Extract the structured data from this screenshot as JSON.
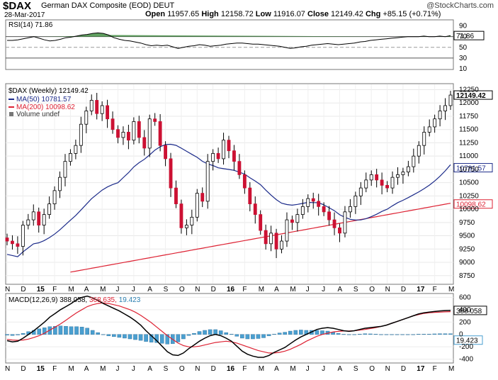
{
  "header": {
    "symbol": "$DAX",
    "name": "German DAX Composite (EOD)",
    "exchange": "DEUT",
    "brand": "@StockCharts.com",
    "date": "28-Mar-2017",
    "open_label": "Open",
    "open": "11957.65",
    "high_label": "High",
    "high": "12158.72",
    "low_label": "Low",
    "low": "11916.07",
    "close_label": "Close",
    "close": "12149.42",
    "chg_label": "Chg",
    "chg": "+85.15 (+0.71%)"
  },
  "colors": {
    "up_candle": "#ffffff",
    "down_candle": "#cc1133",
    "ma50": "#1c2b8a",
    "ma200": "#dd2233",
    "macd_line": "#000000",
    "signal_line": "#dd2233",
    "histogram": "#4a9fd0",
    "rsi_fill": "#3a8a3a"
  },
  "legends": {
    "rsi": "RSI(14) 71.86",
    "price": "$DAX (Weekly) 12149.42",
    "ma50": "MA(50) 10781.57",
    "ma200": "MA(200) 10098.62",
    "volume": "Volume undef",
    "macd_prefix": "MACD(12,26,9)",
    "macd_val": "388.058,",
    "signal_val": "368.635,",
    "hist_val": "19.423"
  },
  "chart_data": [
    {
      "type": "line",
      "panel": "rsi",
      "series": [
        {
          "name": "RSI(14)",
          "values": [
            63,
            63,
            64,
            66,
            68,
            70,
            67,
            64,
            62,
            63,
            65,
            68,
            69,
            71,
            73,
            74,
            76,
            77,
            76,
            73,
            68,
            65,
            63,
            62,
            60,
            58,
            55,
            53,
            54,
            53,
            54,
            51,
            48,
            50,
            52,
            53,
            55,
            54,
            52,
            53,
            54,
            56,
            57,
            58,
            58,
            57,
            56,
            56,
            55,
            54,
            53,
            52,
            50,
            48,
            49,
            51,
            52,
            54,
            55,
            56,
            57,
            56,
            55,
            56,
            57,
            58,
            60,
            61,
            63,
            64,
            65,
            66,
            67,
            68,
            69,
            70,
            70,
            70,
            71,
            70,
            70,
            71,
            70,
            72
          ]
        }
      ],
      "ylim": [
        10,
        100
      ],
      "yticks": [
        90,
        70,
        50,
        30,
        10
      ],
      "last_value_label": "71.86"
    },
    {
      "type": "candlestick",
      "panel": "price",
      "x_ticks": [
        "N",
        "D",
        "15",
        "F",
        "M",
        "A",
        "M",
        "J",
        "J",
        "A",
        "S",
        "O",
        "N",
        "D",
        "16",
        "F",
        "M",
        "A",
        "M",
        "J",
        "J",
        "A",
        "S",
        "O",
        "N",
        "D",
        "17",
        "F",
        "M"
      ],
      "close": [
        9400,
        9350,
        9300,
        9700,
        9800,
        9950,
        9700,
        9900,
        10100,
        10350,
        10600,
        10900,
        11050,
        11200,
        11600,
        11850,
        12050,
        11800,
        11950,
        11700,
        11500,
        11350,
        11450,
        11300,
        11650,
        11350,
        11150,
        11700,
        11650,
        11200,
        10950,
        10400,
        10100,
        9650,
        9700,
        9850,
        10300,
        10150,
        10900,
        11050,
        10950,
        11300,
        11100,
        10900,
        10650,
        10400,
        10100,
        9900,
        9600,
        9350,
        9550,
        9250,
        9400,
        9800,
        9750,
        9900,
        10050,
        10200,
        10150,
        10050,
        9950,
        9800,
        9650,
        9550,
        9950,
        10050,
        10250,
        10400,
        10550,
        10650,
        10550,
        10450,
        10400,
        10600,
        10650,
        10700,
        10800,
        11000,
        11200,
        11450,
        11550,
        11700,
        11850,
        11950,
        12149
      ],
      "ylim": [
        8600,
        12350
      ],
      "yticks": [
        12250,
        12000,
        11750,
        11500,
        11250,
        11000,
        10750,
        10500,
        10250,
        10000,
        9750,
        9500,
        9250,
        9000,
        8750
      ],
      "ma50_label": "10781.57",
      "ma200_label": "10098.62",
      "close_label": "12149.42"
    },
    {
      "type": "line",
      "panel": "macd",
      "series": [
        {
          "name": "MACD(12,26,9)",
          "values": [
            -100,
            -120,
            -110,
            -60,
            0,
            60,
            130,
            200,
            280,
            340,
            400,
            450,
            500,
            560,
            600,
            620,
            590,
            550,
            500,
            460,
            420,
            380,
            330,
            280,
            220,
            150,
            60,
            -20,
            -100,
            -190,
            -280,
            -330,
            -340,
            -300,
            -230,
            -170,
            -110,
            -60,
            -20,
            0,
            -20,
            -60,
            -110,
            -190,
            -270,
            -320,
            -350,
            -370,
            -370,
            -340,
            -290,
            -250,
            -210,
            -150,
            -90,
            -40,
            0,
            40,
            80,
            100,
            110,
            100,
            80,
            60,
            50,
            60,
            80,
            100,
            110,
            120,
            130,
            150,
            180,
            210,
            240,
            270,
            300,
            330,
            350,
            360,
            370,
            380,
            385,
            388
          ]
        },
        {
          "name": "Signal",
          "values": [
            -80,
            -90,
            -95,
            -90,
            -75,
            -50,
            -20,
            20,
            70,
            120,
            170,
            230,
            290,
            350,
            400,
            450,
            480,
            500,
            510,
            500,
            480,
            460,
            430,
            400,
            360,
            310,
            250,
            190,
            120,
            50,
            -20,
            -80,
            -140,
            -180,
            -200,
            -200,
            -190,
            -170,
            -150,
            -130,
            -120,
            -110,
            -120,
            -140,
            -170,
            -200,
            -230,
            -260,
            -280,
            -300,
            -300,
            -290,
            -270,
            -240,
            -200,
            -160,
            -110,
            -70,
            -30,
            0,
            20,
            40,
            50,
            55,
            55,
            60,
            70,
            80,
            95,
            110,
            130,
            150,
            180,
            210,
            240,
            270,
            300,
            320,
            340,
            350,
            355,
            360,
            365,
            368
          ]
        }
      ],
      "ylim": [
        -450,
        650
      ],
      "yticks": [
        600,
        400,
        200,
        0,
        -200,
        -400
      ],
      "macd_label": "388.058",
      "hist_label": "19.423"
    }
  ]
}
